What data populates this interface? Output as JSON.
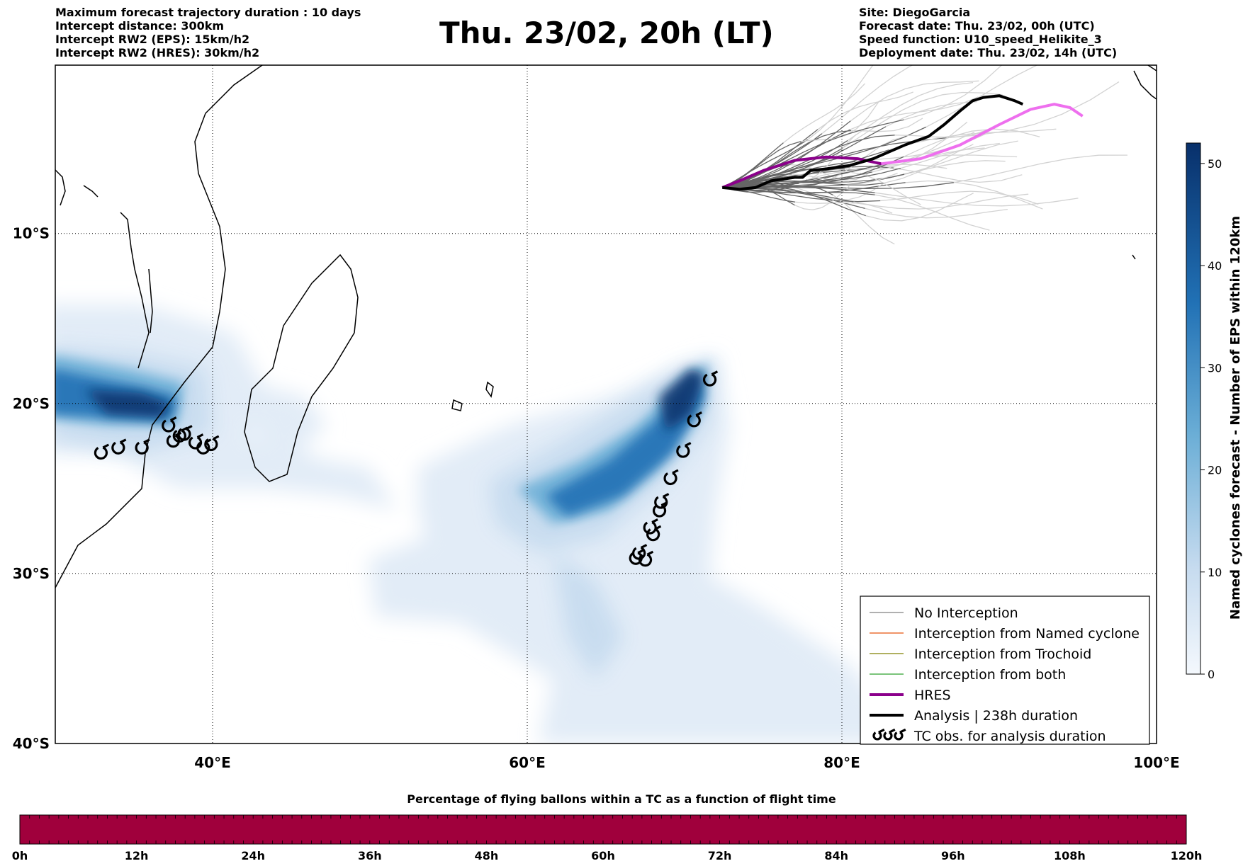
{
  "header_left": [
    "Maximum forecast trajectory duration : 10 days",
    "Intercept distance: 300km",
    "Intercept RW2 (EPS):  15km/h2",
    "Intercept RW2 (HRES): 30km/h2"
  ],
  "title": "Thu. 23/02, 20h (LT)",
  "header_right": [
    "Site: DiegoGarcia",
    "Forecast date: Thu. 23/02, 00h (UTC)",
    "Speed function: U10_speed_Helikite_3",
    "Deployment date: Thu. 23/02, 14h (UTC)"
  ],
  "map": {
    "lon_range": [
      30,
      100
    ],
    "lat_range": [
      -40,
      -0.1
    ],
    "lon_ticks": [
      {
        "value": 40,
        "label": "40°E"
      },
      {
        "value": 60,
        "label": "60°E"
      },
      {
        "value": 80,
        "label": "80°E"
      },
      {
        "value": 100,
        "label": "100°E"
      }
    ],
    "lat_ticks": [
      {
        "value": -10,
        "label": "10°S"
      },
      {
        "value": -20,
        "label": "20°S"
      },
      {
        "value": -30,
        "label": "30°S"
      },
      {
        "value": -40,
        "label": "40°S"
      }
    ],
    "grid": true
  },
  "colorbar": {
    "label": "Named cyclones forecast - Number of EPS within 120km",
    "range": [
      0,
      52
    ],
    "ticks": [
      0,
      10,
      20,
      30,
      40,
      50
    ],
    "color_low": "#e8f0fa",
    "color_high": "#08306b"
  },
  "legend": {
    "items": [
      {
        "label": "No Interception",
        "color": "#808080",
        "style": "thin"
      },
      {
        "label": "Interception from Named cyclone",
        "color": "#e6550d",
        "style": "thin"
      },
      {
        "label": "Interception from Trochoid",
        "color": "#808000",
        "style": "thin"
      },
      {
        "label": "Interception from both",
        "color": "#2ca02c",
        "style": "thin"
      },
      {
        "label": "HRES",
        "color": "#8b008b",
        "style": "thick"
      },
      {
        "label": "Analysis | 238h duration",
        "color": "#000000",
        "style": "thick"
      },
      {
        "label": "TC obs. for analysis duration",
        "color": "#000000",
        "style": "symbol"
      }
    ]
  },
  "tracks": {
    "site": {
      "lon": 72.4,
      "lat": -7.3
    },
    "hres": [
      [
        72.4,
        -7.3
      ],
      [
        73.5,
        -6.9
      ],
      [
        75,
        -6.3
      ],
      [
        77,
        -5.7
      ],
      [
        79,
        -5.5
      ],
      [
        81,
        -5.6
      ],
      [
        82.5,
        -5.9
      ],
      [
        85,
        -5.6
      ],
      [
        87.5,
        -4.8
      ],
      [
        90,
        -3.6
      ],
      [
        92,
        -2.7
      ],
      [
        93.5,
        -2.4
      ],
      [
        94.5,
        -2.6
      ],
      [
        95.3,
        -3.1
      ]
    ],
    "hres_colors": [
      "#8b008b",
      "#ee6fee"
    ],
    "analysis": [
      [
        72.4,
        -7.3
      ],
      [
        73.5,
        -7.4
      ],
      [
        74.5,
        -7.3
      ],
      [
        75.5,
        -6.9
      ],
      [
        77,
        -6.7
      ],
      [
        77.5,
        -6.7
      ],
      [
        78,
        -6.3
      ],
      [
        79,
        -6.2
      ],
      [
        80.5,
        -6.0
      ],
      [
        82,
        -5.6
      ],
      [
        84,
        -4.8
      ],
      [
        85.5,
        -4.3
      ],
      [
        86.5,
        -3.6
      ],
      [
        87.5,
        -2.8
      ],
      [
        88.3,
        -2.2
      ],
      [
        89,
        -2.0
      ],
      [
        90,
        -1.9
      ],
      [
        91,
        -2.2
      ],
      [
        91.5,
        -2.4
      ]
    ],
    "analysis_color": "#000000",
    "ensemble_colors": [
      "#666666",
      "#d2d2d2"
    ]
  },
  "tc_obs": [
    {
      "lon": 32.9,
      "lat": -22.9
    },
    {
      "lon": 34.0,
      "lat": -22.6
    },
    {
      "lon": 35.5,
      "lat": -22.6
    },
    {
      "lon": 37.2,
      "lat": -21.3
    },
    {
      "lon": 37.5,
      "lat": -22.2
    },
    {
      "lon": 37.9,
      "lat": -21.9
    },
    {
      "lon": 38.2,
      "lat": -21.8
    },
    {
      "lon": 38.9,
      "lat": -22.3
    },
    {
      "lon": 39.4,
      "lat": -22.6
    },
    {
      "lon": 39.9,
      "lat": -22.4
    },
    {
      "lon": 71.6,
      "lat": -18.6
    },
    {
      "lon": 70.6,
      "lat": -21.0
    },
    {
      "lon": 69.9,
      "lat": -22.8
    },
    {
      "lon": 69.1,
      "lat": -24.4
    },
    {
      "lon": 68.5,
      "lat": -25.8
    },
    {
      "lon": 68.4,
      "lat": -26.3
    },
    {
      "lon": 67.8,
      "lat": -27.3
    },
    {
      "lon": 68.0,
      "lat": -27.7
    },
    {
      "lon": 67.1,
      "lat": -28.8
    },
    {
      "lon": 66.9,
      "lat": -29.1
    },
    {
      "lon": 67.5,
      "lat": -29.2
    }
  ],
  "flight_time_bar": {
    "title": "Percentage of flying ballons within a TC as a function of flight time",
    "ticks": [
      "0h",
      "12h",
      "24h",
      "36h",
      "48h",
      "60h",
      "72h",
      "84h",
      "96h",
      "108h",
      "120h"
    ],
    "color": "#a0003c"
  }
}
